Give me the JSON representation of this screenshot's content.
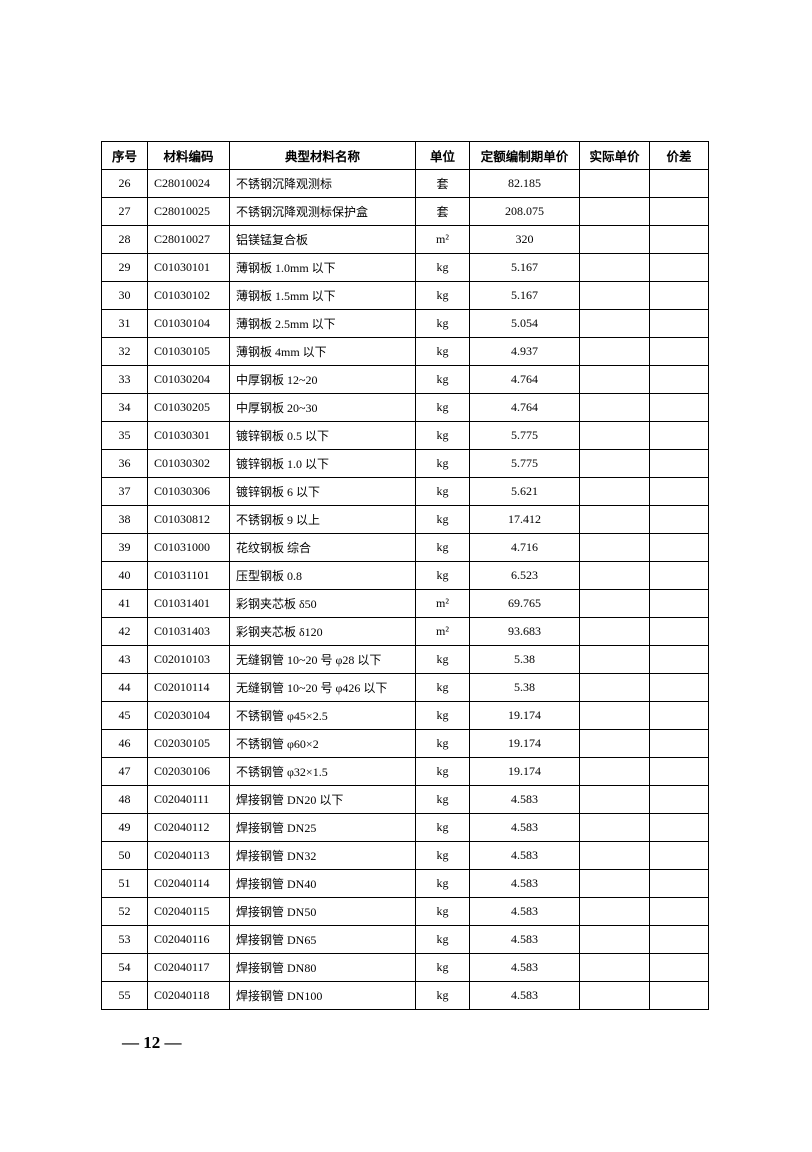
{
  "table": {
    "headers": [
      "序号",
      "材料编码",
      "典型材料名称",
      "单位",
      "定额编制期单价",
      "实际单价",
      "价差"
    ],
    "rows": [
      [
        "26",
        "C28010024",
        "不锈钢沉降观测标",
        "套",
        "82.185"
      ],
      [
        "27",
        "C28010025",
        "不锈钢沉降观测标保护盒",
        "套",
        "208.075"
      ],
      [
        "28",
        "C28010027",
        "铝镁锰复合板",
        "m²",
        "320"
      ],
      [
        "29",
        "C01030101",
        "薄钢板 1.0mm 以下",
        "kg",
        "5.167"
      ],
      [
        "30",
        "C01030102",
        "薄钢板 1.5mm 以下",
        "kg",
        "5.167"
      ],
      [
        "31",
        "C01030104",
        "薄钢板 2.5mm 以下",
        "kg",
        "5.054"
      ],
      [
        "32",
        "C01030105",
        "薄钢板 4mm 以下",
        "kg",
        "4.937"
      ],
      [
        "33",
        "C01030204",
        "中厚钢板 12~20",
        "kg",
        "4.764"
      ],
      [
        "34",
        "C01030205",
        "中厚钢板 20~30",
        "kg",
        "4.764"
      ],
      [
        "35",
        "C01030301",
        "镀锌钢板 0.5 以下",
        "kg",
        "5.775"
      ],
      [
        "36",
        "C01030302",
        "镀锌钢板 1.0 以下",
        "kg",
        "5.775"
      ],
      [
        "37",
        "C01030306",
        "镀锌钢板 6 以下",
        "kg",
        "5.621"
      ],
      [
        "38",
        "C01030812",
        "不锈钢板 9 以上",
        "kg",
        "17.412"
      ],
      [
        "39",
        "C01031000",
        "花纹钢板 综合",
        "kg",
        "4.716"
      ],
      [
        "40",
        "C01031101",
        "压型钢板 0.8",
        "kg",
        "6.523"
      ],
      [
        "41",
        "C01031401",
        "彩钢夹芯板 δ50",
        "m²",
        "69.765"
      ],
      [
        "42",
        "C01031403",
        "彩钢夹芯板 δ120",
        "m²",
        "93.683"
      ],
      [
        "43",
        "C02010103",
        "无缝钢管 10~20 号 φ28 以下",
        "kg",
        "5.38"
      ],
      [
        "44",
        "C02010114",
        "无缝钢管 10~20 号 φ426 以下",
        "kg",
        "5.38"
      ],
      [
        "45",
        "C02030104",
        "不锈钢管 φ45×2.5",
        "kg",
        "19.174"
      ],
      [
        "46",
        "C02030105",
        "不锈钢管 φ60×2",
        "kg",
        "19.174"
      ],
      [
        "47",
        "C02030106",
        "不锈钢管 φ32×1.5",
        "kg",
        "19.174"
      ],
      [
        "48",
        "C02040111",
        "焊接钢管 DN20 以下",
        "kg",
        "4.583"
      ],
      [
        "49",
        "C02040112",
        "焊接钢管 DN25",
        "kg",
        "4.583"
      ],
      [
        "50",
        "C02040113",
        "焊接钢管 DN32",
        "kg",
        "4.583"
      ],
      [
        "51",
        "C02040114",
        "焊接钢管 DN40",
        "kg",
        "4.583"
      ],
      [
        "52",
        "C02040115",
        "焊接钢管 DN50",
        "kg",
        "4.583"
      ],
      [
        "53",
        "C02040116",
        "焊接钢管 DN65",
        "kg",
        "4.583"
      ],
      [
        "54",
        "C02040117",
        "焊接钢管 DN80",
        "kg",
        "4.583"
      ],
      [
        "55",
        "C02040118",
        "焊接钢管 DN100",
        "kg",
        "4.583"
      ]
    ]
  },
  "footer": {
    "page_number": "— 12 —"
  }
}
